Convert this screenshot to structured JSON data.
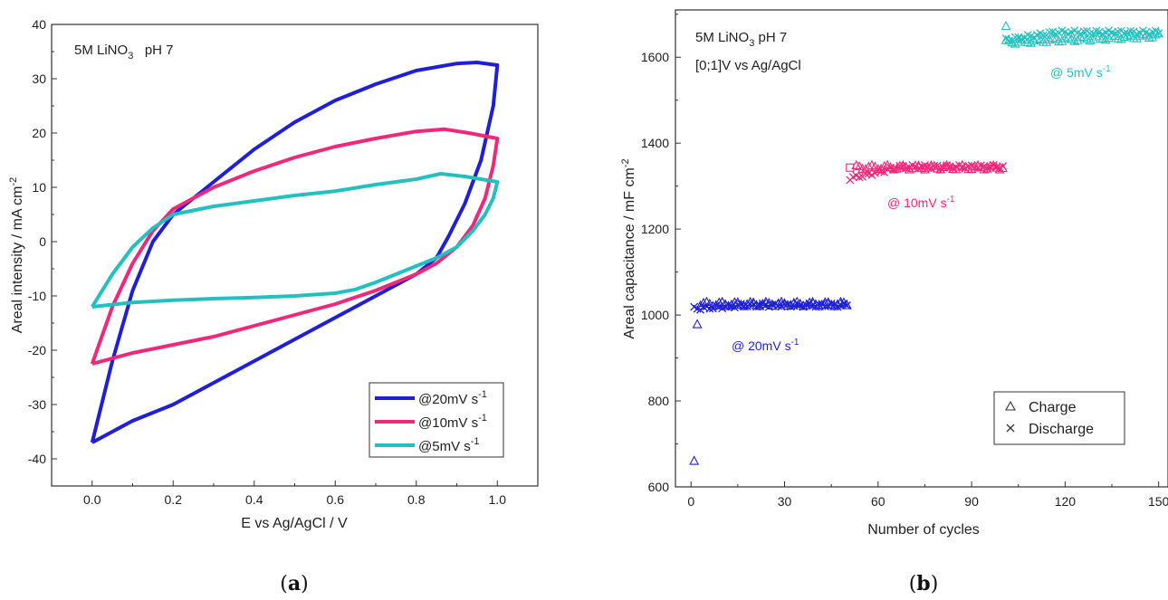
{
  "chart_data": [
    {
      "type": "line",
      "panel": "(a)",
      "caption_letter": "a",
      "annotation": {
        "main": "5M LiNO",
        "sub": "3",
        "rest": "   pH 7"
      },
      "xlabel": "E vs Ag/AgCl / V",
      "ylabel": "Areal intensity / mA cm",
      "ylabel_sup": "-2",
      "xlim": [
        -0.1,
        1.1
      ],
      "ylim": [
        -45,
        40
      ],
      "xticks": [
        0.0,
        0.2,
        0.4,
        0.6,
        0.8,
        1.0
      ],
      "xtick_labels": [
        "0.0",
        "0.2",
        "0.4",
        "0.6",
        "0.8",
        "1.0"
      ],
      "yticks": [
        -40,
        -30,
        -20,
        -10,
        0,
        10,
        20,
        30,
        40
      ],
      "ytick_labels": [
        "-40",
        "-30",
        "-20",
        "-10",
        "0",
        "10",
        "20",
        "30",
        "40"
      ],
      "legend_position": "bottom-right",
      "series": [
        {
          "name": "@20mV s",
          "name_sup": "-1",
          "color": "#1f1fd6",
          "points": [
            [
              0,
              -37
            ],
            [
              0.05,
              -22
            ],
            [
              0.1,
              -9
            ],
            [
              0.15,
              0
            ],
            [
              0.2,
              5
            ],
            [
              0.3,
              11
            ],
            [
              0.4,
              17
            ],
            [
              0.5,
              22
            ],
            [
              0.6,
              26
            ],
            [
              0.7,
              29
            ],
            [
              0.8,
              31.5
            ],
            [
              0.9,
              32.8
            ],
            [
              0.95,
              33
            ],
            [
              1.0,
              32.5
            ],
            [
              1.0,
              32.5
            ],
            [
              0.99,
              25
            ],
            [
              0.96,
              15
            ],
            [
              0.92,
              7
            ],
            [
              0.88,
              1
            ],
            [
              0.85,
              -3
            ],
            [
              0.8,
              -6
            ],
            [
              0.7,
              -10
            ],
            [
              0.6,
              -14
            ],
            [
              0.5,
              -18
            ],
            [
              0.4,
              -22
            ],
            [
              0.3,
              -26
            ],
            [
              0.2,
              -30
            ],
            [
              0.1,
              -33
            ],
            [
              0.05,
              -35
            ],
            [
              0,
              -37
            ]
          ]
        },
        {
          "name": "@10mV s",
          "name_sup": "-1",
          "color": "#f0287a",
          "points": [
            [
              0,
              -22.5
            ],
            [
              0.05,
              -12
            ],
            [
              0.1,
              -4
            ],
            [
              0.15,
              2
            ],
            [
              0.2,
              6
            ],
            [
              0.3,
              10
            ],
            [
              0.4,
              13
            ],
            [
              0.5,
              15.5
            ],
            [
              0.6,
              17.5
            ],
            [
              0.7,
              19
            ],
            [
              0.8,
              20.3
            ],
            [
              0.87,
              20.7
            ],
            [
              0.93,
              20
            ],
            [
              1.0,
              19
            ],
            [
              1.0,
              19
            ],
            [
              0.99,
              14
            ],
            [
              0.97,
              8
            ],
            [
              0.94,
              3
            ],
            [
              0.9,
              -1
            ],
            [
              0.85,
              -4
            ],
            [
              0.8,
              -6
            ],
            [
              0.7,
              -9
            ],
            [
              0.6,
              -11.5
            ],
            [
              0.5,
              -13.5
            ],
            [
              0.4,
              -15.5
            ],
            [
              0.3,
              -17.5
            ],
            [
              0.2,
              -19
            ],
            [
              0.1,
              -20.5
            ],
            [
              0.05,
              -21.5
            ],
            [
              0,
              -22.5
            ]
          ]
        },
        {
          "name": "@5mV s",
          "name_sup": "-1",
          "color": "#24c0c0",
          "points": [
            [
              0,
              -12
            ],
            [
              0.05,
              -6
            ],
            [
              0.1,
              -1
            ],
            [
              0.15,
              2.5
            ],
            [
              0.2,
              5
            ],
            [
              0.3,
              6.5
            ],
            [
              0.4,
              7.5
            ],
            [
              0.5,
              8.5
            ],
            [
              0.6,
              9.3
            ],
            [
              0.7,
              10.5
            ],
            [
              0.8,
              11.5
            ],
            [
              0.86,
              12.5
            ],
            [
              0.92,
              12
            ],
            [
              1.0,
              11
            ],
            [
              1.0,
              11
            ],
            [
              0.99,
              8
            ],
            [
              0.97,
              5
            ],
            [
              0.94,
              2
            ],
            [
              0.9,
              -1
            ],
            [
              0.85,
              -3
            ],
            [
              0.8,
              -4.5
            ],
            [
              0.75,
              -6
            ],
            [
              0.7,
              -7.5
            ],
            [
              0.65,
              -8.8
            ],
            [
              0.6,
              -9.5
            ],
            [
              0.5,
              -10
            ],
            [
              0.4,
              -10.3
            ],
            [
              0.3,
              -10.5
            ],
            [
              0.2,
              -10.8
            ],
            [
              0.1,
              -11.2
            ],
            [
              0,
              -12
            ]
          ]
        }
      ]
    },
    {
      "type": "scatter",
      "panel": "(b)",
      "caption_letter": "b",
      "annotation": {
        "main": "5M LiNO",
        "sub": "3",
        "rest": " pH 7",
        "line2": "[0;1]V vs Ag/AgCl"
      },
      "xlabel": "Number of cycles",
      "ylabel": "Areal capacitance / mF cm",
      "ylabel_sup": "-2",
      "xlim": [
        -5,
        153
      ],
      "ylim": [
        600,
        1710
      ],
      "xticks": [
        0,
        30,
        60,
        90,
        120,
        150
      ],
      "xtick_labels": [
        "0",
        "30",
        "60",
        "90",
        "120",
        "150"
      ],
      "yticks": [
        600,
        800,
        1000,
        1200,
        1400,
        1600
      ],
      "ytick_labels": [
        "600",
        "800",
        "1000",
        "1200",
        "1400",
        "1600"
      ],
      "legend_position": "bottom-right",
      "legend": [
        {
          "marker": "triangle",
          "label": "Charge"
        },
        {
          "marker": "x",
          "label": "Discharge"
        }
      ],
      "segments": [
        {
          "label": "@ 20mV s",
          "label_sup": "-1",
          "color": "#1f1fd6",
          "cycle_start": 1,
          "cycle_end": 50,
          "charge_first": [
            [
              1,
              660
            ],
            [
              2,
              978
            ]
          ],
          "charge_level": 1025,
          "discharge_first": 1015,
          "discharge_level": 1023
        },
        {
          "label": "@ 10mV s",
          "label_sup": "-1",
          "color": "#f0287a",
          "cycle_start": 51,
          "cycle_end": 100,
          "charge_first": [
            [
              51,
              1343
            ]
          ],
          "charge_level": 1343,
          "discharge_first": 1318,
          "discharge_level": 1345
        },
        {
          "label": "@ 5mV s",
          "label_sup": "-1",
          "color": "#24c0c0",
          "cycle_start": 101,
          "cycle_end": 150,
          "charge_first": [
            [
              101,
              1672
            ]
          ],
          "charge_level": 1650,
          "discharge_first": 1640,
          "discharge_level": 1658
        }
      ]
    }
  ]
}
